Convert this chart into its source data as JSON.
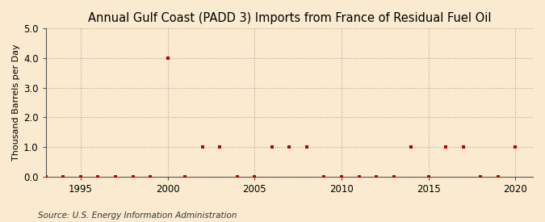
{
  "title": "Annual Gulf Coast (PADD 3) Imports from France of Residual Fuel Oil",
  "ylabel": "Thousand Barrels per Day",
  "source": "Source: U.S. Energy Information Administration",
  "background_color": "#faebd0",
  "plot_bg_color": "#faebd0",
  "years": [
    1993,
    1994,
    1995,
    1996,
    1997,
    1998,
    1999,
    2000,
    2001,
    2002,
    2003,
    2004,
    2005,
    2006,
    2007,
    2008,
    2009,
    2010,
    2011,
    2012,
    2013,
    2014,
    2015,
    2016,
    2017,
    2018,
    2019,
    2020
  ],
  "values": [
    0,
    0,
    0,
    0,
    0,
    0,
    0,
    4.0,
    0,
    1.0,
    1.0,
    0,
    0,
    1.0,
    1.0,
    1.0,
    0,
    0,
    0,
    0,
    0,
    1.0,
    0,
    1.0,
    1.0,
    0,
    0,
    1.0
  ],
  "marker_color": "#bb0000",
  "marker_size": 3.5,
  "ylim": [
    0.0,
    5.0
  ],
  "xlim": [
    1993,
    2021
  ],
  "yticks": [
    0.0,
    1.0,
    2.0,
    3.0,
    4.0,
    5.0
  ],
  "xticks": [
    1995,
    2000,
    2005,
    2010,
    2015,
    2020
  ],
  "grid_color": "#b0a090",
  "grid_linestyle": ":",
  "vgrid_positions": [
    1995,
    2000,
    2005,
    2010,
    2015,
    2020
  ],
  "title_fontsize": 10.5,
  "ylabel_fontsize": 8,
  "tick_fontsize": 8.5,
  "source_fontsize": 7.5
}
